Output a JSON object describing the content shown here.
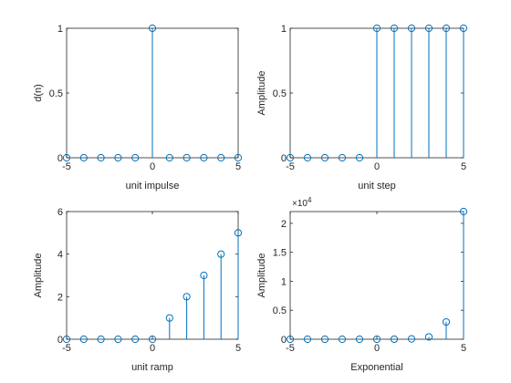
{
  "figure": {
    "line_color": "#0072bd",
    "axes_color": "#262626",
    "background": "#ffffff"
  },
  "chart_data": [
    {
      "type": "stem",
      "xlabel": "unit impulse",
      "ylabel": "d(n)",
      "xlim": [
        -5,
        5
      ],
      "ylim": [
        0,
        1
      ],
      "xticks": [
        "-5",
        "0",
        "5"
      ],
      "yticks": [
        "0",
        "0.5",
        "1"
      ],
      "exponent_label": "",
      "x": [
        -5,
        -4,
        -3,
        -2,
        -1,
        0,
        1,
        2,
        3,
        4,
        5
      ],
      "y": [
        0,
        0,
        0,
        0,
        0,
        1,
        0,
        0,
        0,
        0,
        0
      ]
    },
    {
      "type": "stem",
      "xlabel": "unit step",
      "ylabel": "Amplitude",
      "xlim": [
        -5,
        5
      ],
      "ylim": [
        0,
        1
      ],
      "xticks": [
        "-5",
        "0",
        "5"
      ],
      "yticks": [
        "0",
        "0.5",
        "1"
      ],
      "exponent_label": "",
      "x": [
        -5,
        -4,
        -3,
        -2,
        -1,
        0,
        1,
        2,
        3,
        4,
        5
      ],
      "y": [
        0,
        0,
        0,
        0,
        0,
        1,
        1,
        1,
        1,
        1,
        1
      ]
    },
    {
      "type": "stem",
      "xlabel": "unit ramp",
      "ylabel": "Amplitude",
      "xlim": [
        -5,
        5
      ],
      "ylim": [
        0,
        6
      ],
      "xticks": [
        "-5",
        "0",
        "5"
      ],
      "yticks": [
        "0",
        "2",
        "4",
        "6"
      ],
      "exponent_label": "",
      "x": [
        -5,
        -4,
        -3,
        -2,
        -1,
        0,
        1,
        2,
        3,
        4,
        5
      ],
      "y": [
        0,
        0,
        0,
        0,
        0,
        0,
        1,
        2,
        3,
        4,
        5
      ]
    },
    {
      "type": "stem",
      "xlabel": "Exponential",
      "ylabel": "Amplitude",
      "xlim": [
        -5,
        5
      ],
      "ylim": [
        0,
        22026
      ],
      "xticks": [
        "-5",
        "0",
        "5"
      ],
      "yticks": [
        "0",
        "0.5",
        "1",
        "1.5",
        "2"
      ],
      "ytick_values": [
        0,
        5000,
        10000,
        15000,
        20000
      ],
      "exponent_label": "×10",
      "exponent_power": "4",
      "x": [
        -5,
        -4,
        -3,
        -2,
        -1,
        0,
        1,
        2,
        3,
        4,
        5
      ],
      "y": [
        0,
        0,
        0,
        0,
        0,
        1,
        7,
        55,
        403,
        2981,
        22026
      ]
    }
  ]
}
